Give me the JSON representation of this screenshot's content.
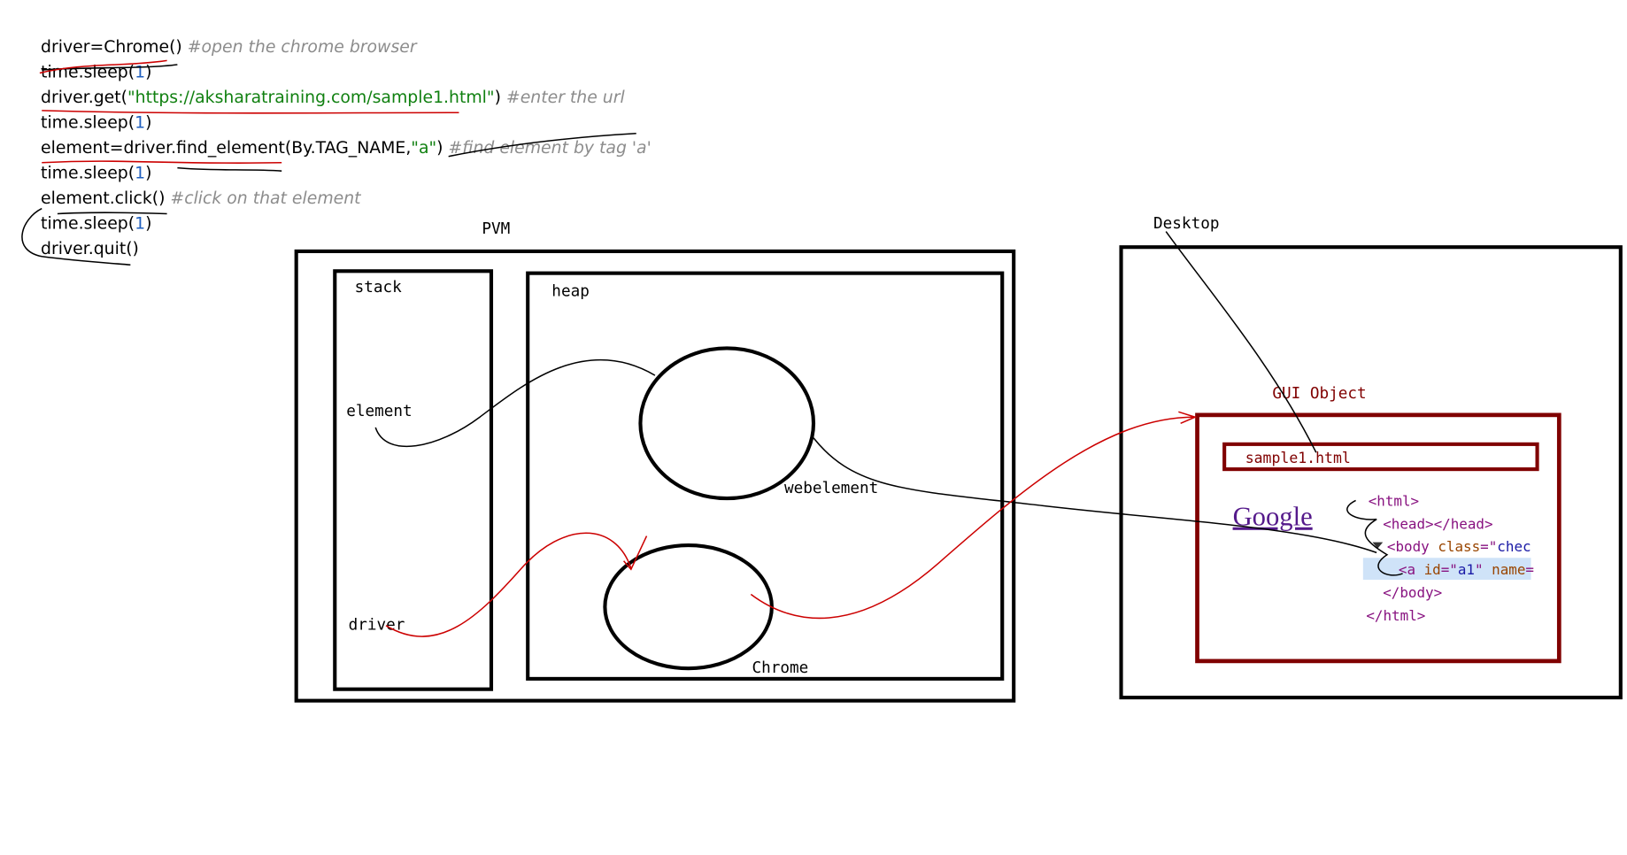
{
  "code": [
    {
      "parts": [
        {
          "text": "driver=Chrome()",
          "color": "#000000"
        },
        {
          "text": " #open the chrome browser",
          "color": "#8c8c8c"
        }
      ]
    },
    {
      "parts": [
        {
          "text": "time.sleep(",
          "color": "#000000"
        },
        {
          "text": "1",
          "color": "#1f5fbf"
        },
        {
          "text": ")",
          "color": "#000000"
        }
      ]
    },
    {
      "parts": [
        {
          "text": "driver.get(",
          "color": "#000000"
        },
        {
          "text": "\"https://aksharatraining.com/sample1.html\"",
          "color": "#108010"
        },
        {
          "text": ")",
          "color": "#000000"
        },
        {
          "text": " #enter the url",
          "color": "#8c8c8c"
        }
      ]
    },
    {
      "parts": [
        {
          "text": "time.sleep(",
          "color": "#000000"
        },
        {
          "text": "1",
          "color": "#1f5fbf"
        },
        {
          "text": ")",
          "color": "#000000"
        }
      ]
    },
    {
      "parts": [
        {
          "text": "element=driver.find_element(By.TAG_NAME,",
          "color": "#000000"
        },
        {
          "text": "\"a\"",
          "color": "#108010"
        },
        {
          "text": ")",
          "color": "#000000"
        },
        {
          "text": " #find element by tag 'a'",
          "color": "#8c8c8c"
        }
      ]
    },
    {
      "parts": [
        {
          "text": "time.sleep(",
          "color": "#000000"
        },
        {
          "text": "1",
          "color": "#1f5fbf"
        },
        {
          "text": ")",
          "color": "#000000"
        }
      ]
    },
    {
      "parts": [
        {
          "text": "element.click()",
          "color": "#000000"
        },
        {
          "text": " #click on that element",
          "color": "#8c8c8c"
        }
      ]
    },
    {
      "parts": [
        {
          "text": "time.sleep(",
          "color": "#000000"
        },
        {
          "text": "1",
          "color": "#1f5fbf"
        },
        {
          "text": ")",
          "color": "#000000"
        }
      ]
    },
    {
      "parts": [
        {
          "text": "driver.quit()",
          "color": "#000000"
        }
      ]
    }
  ],
  "pvm": {
    "title": "PVM",
    "stack": "stack",
    "heap": "heap",
    "element": "element",
    "driver": "driver",
    "webelement": "webelement",
    "chrome": "Chrome"
  },
  "desktop": {
    "title": "Desktop",
    "gui_object": "GUI Object",
    "address": "sample1.html",
    "page_text": "Google",
    "dom": [
      [
        {
          "text": "<html>",
          "color": "#881280"
        }
      ],
      [
        {
          "text": "<head></head>",
          "color": "#881280"
        }
      ],
      [
        {
          "text": "<body ",
          "color": "#881280"
        },
        {
          "text": "class",
          "color": "#994500"
        },
        {
          "text": "=\"",
          "color": "#881280"
        },
        {
          "text": "chec",
          "color": "#1a1aa6"
        }
      ],
      [
        {
          "text": "<a ",
          "color": "#881280"
        },
        {
          "text": "id",
          "color": "#994500"
        },
        {
          "text": "=\"",
          "color": "#881280"
        },
        {
          "text": "a1",
          "color": "#1a1aa6"
        },
        {
          "text": "\" ",
          "color": "#881280"
        },
        {
          "text": "name",
          "color": "#994500"
        },
        {
          "text": "=",
          "color": "#881280"
        }
      ],
      [
        {
          "text": "</body>",
          "color": "#881280"
        }
      ],
      [
        {
          "text": "</html>",
          "color": "#881280"
        }
      ]
    ]
  }
}
